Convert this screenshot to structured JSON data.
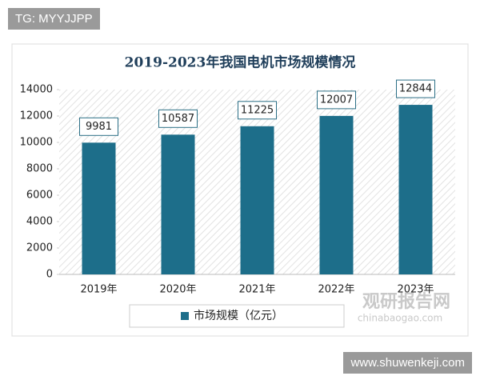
{
  "chart_data": {
    "type": "bar",
    "title": "2019-2023年我国电机市场规模情况",
    "categories": [
      "2019年",
      "2020年",
      "2021年",
      "2022年",
      "2023年"
    ],
    "series": [
      {
        "name": "市场规模（亿元）",
        "color": "#1d6e8a",
        "values": [
          9981,
          10587,
          11225,
          12007,
          12844
        ]
      }
    ],
    "ylim": [
      0,
      14000
    ],
    "yticks": [
      0,
      2000,
      4000,
      6000,
      8000,
      10000,
      12000,
      14000
    ],
    "grid": false,
    "legend": "bottom"
  },
  "overlay": {
    "tag": "TG: MYYJJPP",
    "watermark": [
      "观研报告网",
      "chinabaogao.com"
    ],
    "footer": "www.shuwenkeji.com"
  }
}
